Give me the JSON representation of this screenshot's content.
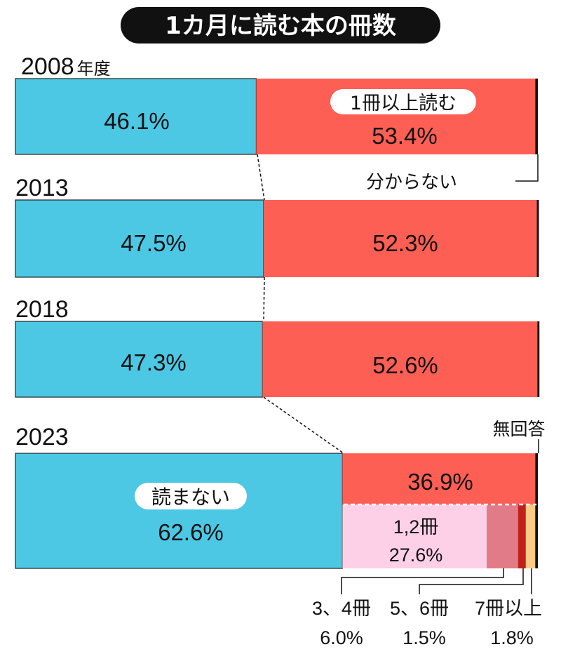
{
  "chart_data": {
    "type": "bar",
    "orientation": "horizontal-stacked-100",
    "title": "1カ月に読む本の冊数",
    "year_suffix": "年度",
    "categories": [
      "2008",
      "2013",
      "2018",
      "2023"
    ],
    "series": [
      {
        "name": "読まない",
        "color": "#4cc8e4",
        "values": [
          46.1,
          47.5,
          47.3,
          62.6
        ]
      },
      {
        "name": "1冊以上読む",
        "color": "#fe5f55",
        "values": [
          53.4,
          52.3,
          52.6,
          36.9
        ]
      },
      {
        "name": "分からない",
        "color": "#111111",
        "values": [
          0.5,
          0.2,
          0.1,
          0.5
        ]
      }
    ],
    "labels": {
      "v2008_0": "46.1%",
      "v2008_1": "53.4%",
      "v2013_0": "47.5%",
      "v2013_1": "52.3%",
      "v2018_0": "47.3%",
      "v2018_1": "52.6%",
      "v2023_0": "62.6%",
      "v2023_1": "36.9%",
      "unknown": "分からない",
      "no_answer": "無回答"
    },
    "breakdown_2023": [
      {
        "name": "1,2冊",
        "value": 27.6,
        "label": "27.6%",
        "color": "#fdd0e8"
      },
      {
        "name": "3、4冊",
        "value": 6.0,
        "label": "6.0%",
        "color": "#e27b88"
      },
      {
        "name": "5、6冊",
        "value": 1.5,
        "label": "1.5%",
        "color": "#c0211b"
      },
      {
        "name": "7冊以上",
        "value": 1.8,
        "label": "1.8%",
        "color": "#fccb86"
      }
    ]
  }
}
